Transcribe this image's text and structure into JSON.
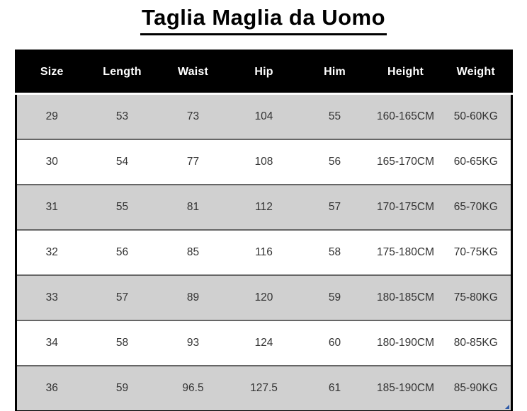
{
  "title": "Taglia Maglia da Uomo",
  "chart_data": {
    "type": "table",
    "title": "Taglia Maglia da Uomo",
    "columns": [
      "Size",
      "Length",
      "Waist",
      "Hip",
      "Him",
      "Height",
      "Weight"
    ],
    "rows": [
      [
        "29",
        "53",
        "73",
        "104",
        "55",
        "160-165CM",
        "50-60KG"
      ],
      [
        "30",
        "54",
        "77",
        "108",
        "56",
        "165-170CM",
        "60-65KG"
      ],
      [
        "31",
        "55",
        "81",
        "112",
        "57",
        "170-175CM",
        "65-70KG"
      ],
      [
        "32",
        "56",
        "85",
        "116",
        "58",
        "175-180CM",
        "70-75KG"
      ],
      [
        "33",
        "57",
        "89",
        "120",
        "59",
        "180-185CM",
        "75-80KG"
      ],
      [
        "34",
        "58",
        "93",
        "124",
        "60",
        "180-190CM",
        "80-85KG"
      ],
      [
        "36",
        "59",
        "96.5",
        "127.5",
        "61",
        "185-190CM",
        "85-90KG"
      ]
    ],
    "layout": {
      "legend": "none",
      "grid": "row-separators-only",
      "first_data_row_shaded": true,
      "alternating_rows": true
    }
  },
  "colors": {
    "header_bg": "#000000",
    "header_text": "#ffffff",
    "shaded_row_bg": "#d0d0d0",
    "plain_row_bg": "#ffffff",
    "body_text": "#333333",
    "row_separator": "#666666",
    "outer_border": "#000000",
    "title_text": "#000000",
    "corner_marker": "#2e5aa8"
  },
  "icons": {
    "corner_marker": "resize-corner-triangle"
  }
}
